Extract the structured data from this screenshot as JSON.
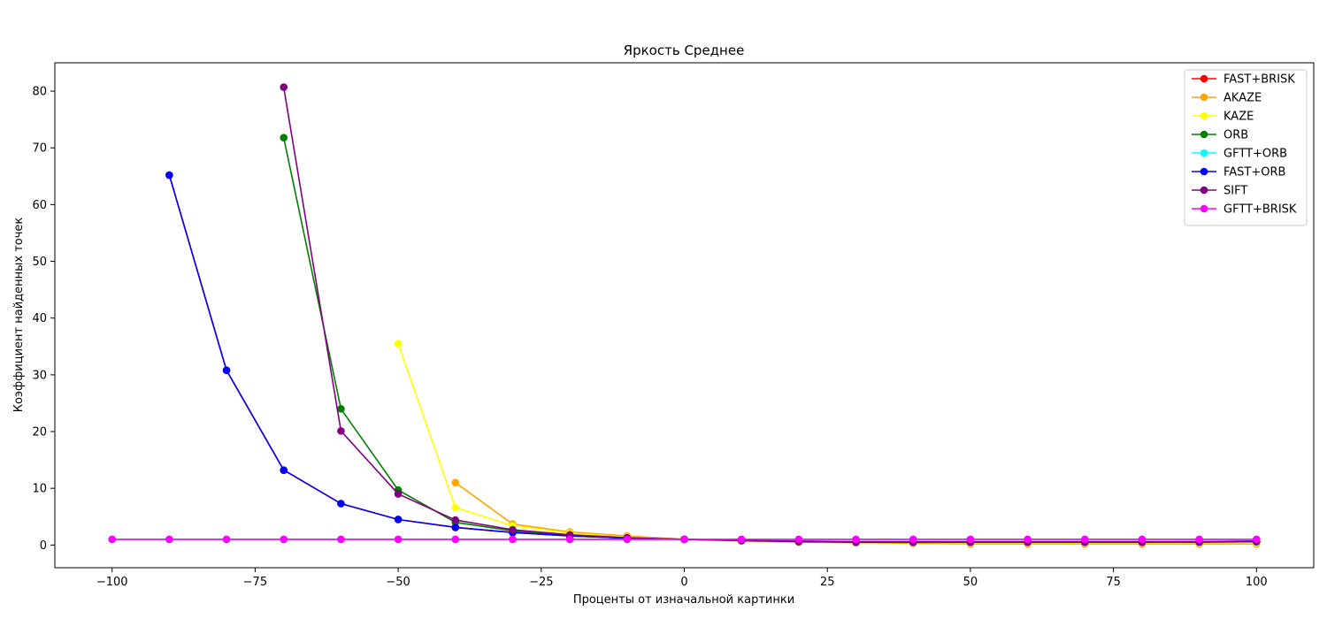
{
  "chart_data": {
    "type": "line",
    "title": "Яркость Среднее",
    "xlabel": "Проценты от изначальной картинки",
    "ylabel": "Коэффициент найденных точек",
    "xlim": [
      -110,
      110
    ],
    "ylim": [
      -4,
      85
    ],
    "xticks": [
      -100,
      -75,
      -50,
      -25,
      0,
      25,
      50,
      75,
      100
    ],
    "yticks": [
      0,
      10,
      20,
      30,
      40,
      50,
      60,
      70,
      80
    ],
    "grid": false,
    "legend_position": "top-right",
    "series": [
      {
        "name": "FAST+BRISK",
        "color": "#ff0000",
        "points": [
          [
            -90,
            65.2
          ],
          [
            -80,
            30.8
          ],
          [
            -70,
            13.2
          ],
          [
            -60,
            7.3
          ],
          [
            -50,
            4.5
          ],
          [
            -40,
            3.1
          ],
          [
            -30,
            2.2
          ],
          [
            -20,
            1.6
          ],
          [
            -10,
            1.2
          ],
          [
            0,
            1.0
          ],
          [
            10,
            0.8
          ],
          [
            20,
            0.6
          ],
          [
            30,
            0.5
          ],
          [
            40,
            0.5
          ],
          [
            50,
            0.5
          ],
          [
            60,
            0.5
          ],
          [
            70,
            0.5
          ],
          [
            80,
            0.5
          ],
          [
            90,
            0.5
          ],
          [
            100,
            0.6
          ]
        ]
      },
      {
        "name": "AKAZE",
        "color": "#ffa500",
        "points": [
          [
            -40,
            11.0
          ],
          [
            -30,
            3.7
          ],
          [
            -20,
            2.3
          ],
          [
            -10,
            1.6
          ],
          [
            0,
            1.0
          ],
          [
            10,
            0.7
          ],
          [
            20,
            0.5
          ],
          [
            30,
            0.4
          ],
          [
            40,
            0.3
          ],
          [
            50,
            0.2
          ],
          [
            60,
            0.2
          ],
          [
            70,
            0.2
          ],
          [
            80,
            0.2
          ],
          [
            90,
            0.2
          ],
          [
            100,
            0.2
          ]
        ]
      },
      {
        "name": "KAZE",
        "color": "#ffff00",
        "points": [
          [
            -50,
            35.5
          ],
          [
            -40,
            6.6
          ],
          [
            -30,
            3.4
          ],
          [
            -20,
            2.1
          ],
          [
            -10,
            1.4
          ],
          [
            0,
            1.0
          ],
          [
            10,
            0.8
          ],
          [
            20,
            0.6
          ],
          [
            30,
            0.5
          ],
          [
            40,
            0.5
          ],
          [
            50,
            0.4
          ],
          [
            60,
            0.4
          ],
          [
            70,
            0.4
          ],
          [
            80,
            0.4
          ],
          [
            90,
            0.4
          ],
          [
            100,
            0.4
          ]
        ]
      },
      {
        "name": "ORB",
        "color": "#008000",
        "points": [
          [
            -70,
            71.8
          ],
          [
            -60,
            24.0
          ],
          [
            -50,
            9.7
          ],
          [
            -40,
            4.0
          ],
          [
            -30,
            2.5
          ],
          [
            -20,
            1.7
          ],
          [
            -10,
            1.2
          ],
          [
            0,
            1.0
          ],
          [
            10,
            0.8
          ],
          [
            20,
            0.7
          ],
          [
            30,
            0.6
          ],
          [
            40,
            0.6
          ],
          [
            50,
            0.6
          ],
          [
            60,
            0.6
          ],
          [
            70,
            0.6
          ],
          [
            80,
            0.6
          ],
          [
            90,
            0.6
          ],
          [
            100,
            0.6
          ]
        ]
      },
      {
        "name": "GFTT+ORB",
        "color": "#00ffff",
        "points": [
          [
            -100,
            1.0
          ],
          [
            -90,
            1.0
          ],
          [
            -80,
            1.0
          ],
          [
            -70,
            1.0
          ],
          [
            -60,
            1.0
          ],
          [
            -50,
            1.0
          ],
          [
            -40,
            1.0
          ],
          [
            -30,
            1.0
          ],
          [
            -20,
            1.0
          ],
          [
            -10,
            1.0
          ],
          [
            0,
            1.0
          ],
          [
            10,
            1.0
          ],
          [
            20,
            1.0
          ],
          [
            30,
            1.0
          ],
          [
            40,
            1.0
          ],
          [
            50,
            1.0
          ],
          [
            60,
            1.0
          ],
          [
            70,
            1.0
          ],
          [
            80,
            1.0
          ],
          [
            90,
            1.0
          ],
          [
            100,
            1.0
          ]
        ]
      },
      {
        "name": "FAST+ORB",
        "color": "#0000ff",
        "points": [
          [
            -90,
            65.2
          ],
          [
            -80,
            30.8
          ],
          [
            -70,
            13.2
          ],
          [
            -60,
            7.3
          ],
          [
            -50,
            4.5
          ],
          [
            -40,
            3.1
          ],
          [
            -30,
            2.2
          ],
          [
            -20,
            1.6
          ],
          [
            -10,
            1.2
          ],
          [
            0,
            1.0
          ],
          [
            10,
            0.8
          ],
          [
            20,
            0.6
          ],
          [
            30,
            0.5
          ],
          [
            40,
            0.5
          ],
          [
            50,
            0.5
          ],
          [
            60,
            0.5
          ],
          [
            70,
            0.5
          ],
          [
            80,
            0.5
          ],
          [
            90,
            0.5
          ],
          [
            100,
            0.6
          ]
        ]
      },
      {
        "name": "SIFT",
        "color": "#800080",
        "points": [
          [
            -70,
            80.7
          ],
          [
            -60,
            20.1
          ],
          [
            -50,
            9.0
          ],
          [
            -40,
            4.4
          ],
          [
            -30,
            2.7
          ],
          [
            -20,
            1.8
          ],
          [
            -10,
            1.3
          ],
          [
            0,
            1.0
          ],
          [
            10,
            0.8
          ],
          [
            20,
            0.6
          ],
          [
            30,
            0.5
          ],
          [
            40,
            0.5
          ],
          [
            50,
            0.5
          ],
          [
            60,
            0.5
          ],
          [
            70,
            0.5
          ],
          [
            80,
            0.5
          ],
          [
            90,
            0.6
          ],
          [
            100,
            0.7
          ]
        ]
      },
      {
        "name": "GFTT+BRISK",
        "color": "#ff00ff",
        "points": [
          [
            -100,
            1.0
          ],
          [
            -90,
            1.0
          ],
          [
            -80,
            1.0
          ],
          [
            -70,
            1.0
          ],
          [
            -60,
            1.0
          ],
          [
            -50,
            1.0
          ],
          [
            -40,
            1.0
          ],
          [
            -30,
            1.0
          ],
          [
            -20,
            1.0
          ],
          [
            -10,
            1.0
          ],
          [
            0,
            1.0
          ],
          [
            10,
            1.0
          ],
          [
            20,
            1.0
          ],
          [
            30,
            1.0
          ],
          [
            40,
            1.0
          ],
          [
            50,
            1.0
          ],
          [
            60,
            1.0
          ],
          [
            70,
            1.0
          ],
          [
            80,
            1.0
          ],
          [
            90,
            1.0
          ],
          [
            100,
            1.0
          ]
        ]
      }
    ]
  }
}
